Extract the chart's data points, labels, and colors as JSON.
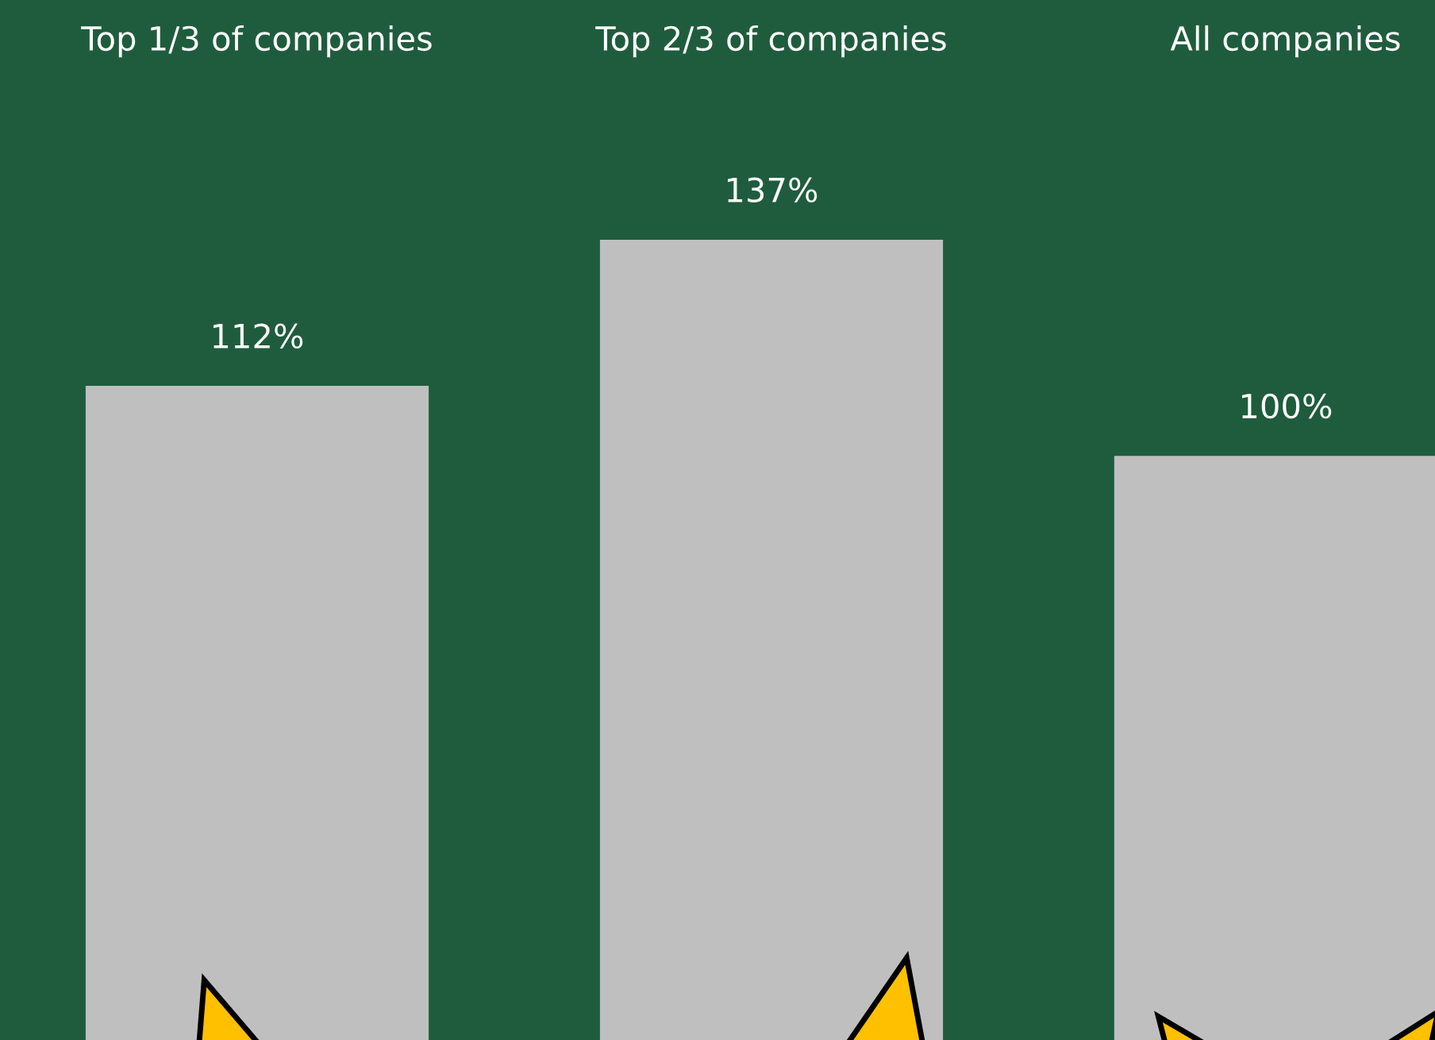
{
  "chart_data": {
    "type": "bar",
    "categories": [
      "Top 1/3 of companies",
      "Top 2/3 of companies",
      "All companies"
    ],
    "values": [
      112,
      137,
      100
    ],
    "value_labels": [
      "112%",
      "137%",
      "100%"
    ],
    "color": "#bfbfbf",
    "grid": false
  }
}
